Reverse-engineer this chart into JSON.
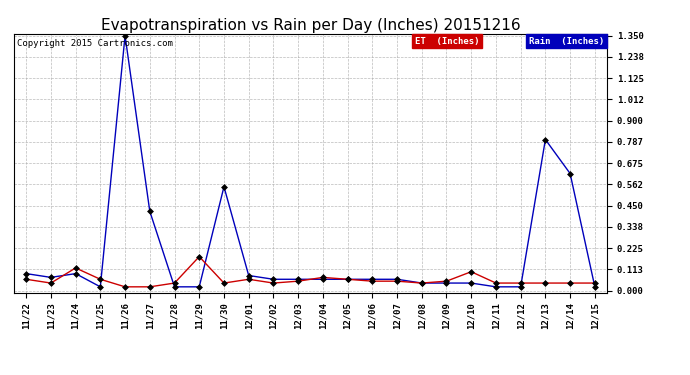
{
  "title": "Evapotranspiration vs Rain per Day (Inches) 20151216",
  "copyright_text": "Copyright 2015 Cartronics.com",
  "x_labels": [
    "11/22",
    "11/23",
    "11/24",
    "11/25",
    "11/26",
    "11/27",
    "11/28",
    "11/29",
    "11/30",
    "12/01",
    "12/02",
    "12/03",
    "12/04",
    "12/05",
    "12/06",
    "12/07",
    "12/08",
    "12/09",
    "12/10",
    "12/11",
    "12/12",
    "12/13",
    "12/14",
    "12/15"
  ],
  "rain_values": [
    0.09,
    0.07,
    0.09,
    0.02,
    1.35,
    0.42,
    0.02,
    0.02,
    0.55,
    0.08,
    0.06,
    0.06,
    0.06,
    0.06,
    0.06,
    0.06,
    0.04,
    0.04,
    0.04,
    0.02,
    0.02,
    0.8,
    0.62,
    0.02
  ],
  "et_values": [
    0.06,
    0.04,
    0.12,
    0.06,
    0.02,
    0.02,
    0.04,
    0.18,
    0.04,
    0.06,
    0.04,
    0.05,
    0.07,
    0.06,
    0.05,
    0.05,
    0.04,
    0.05,
    0.1,
    0.04,
    0.04,
    0.04,
    0.04,
    0.04
  ],
  "rain_color": "#0000bb",
  "et_color": "#cc0000",
  "background_color": "#ffffff",
  "grid_color": "#aaaaaa",
  "ylim_min": 0.0,
  "ylim_max": 1.35,
  "yticks": [
    0.0,
    0.113,
    0.225,
    0.338,
    0.45,
    0.562,
    0.675,
    0.787,
    0.9,
    1.012,
    1.125,
    1.238,
    1.35
  ],
  "title_fontsize": 11,
  "copyright_fontsize": 6.5,
  "tick_fontsize": 6.5,
  "legend_rain_label": "Rain  (Inches)",
  "legend_et_label": "ET  (Inches)",
  "legend_rain_bg": "#0000bb",
  "legend_et_bg": "#cc0000",
  "legend_text_color": "#ffffff",
  "marker_color": "#000000",
  "marker_size": 3,
  "line_width": 1.0
}
